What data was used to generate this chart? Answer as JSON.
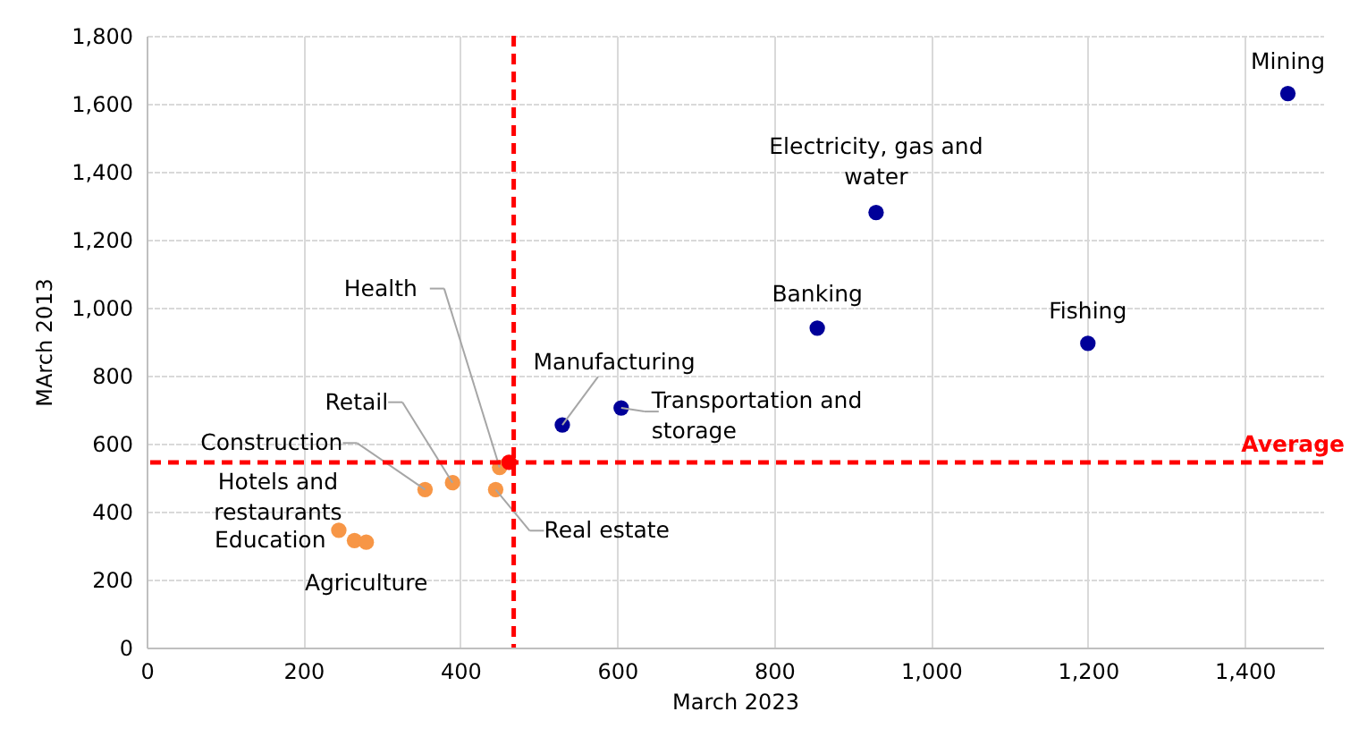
{
  "chart_data": {
    "type": "scatter",
    "xlabel": "March 2023",
    "ylabel": "MArch 2013",
    "xlim": [
      0,
      1500
    ],
    "ylim": [
      0,
      1800
    ],
    "xticks": [
      0,
      200,
      400,
      600,
      800,
      {
        "value": 1000,
        "label": "1,000"
      },
      {
        "value": 1200,
        "label": "1,200"
      },
      {
        "value": 1400,
        "label": "1,400"
      }
    ],
    "yticks": [
      0,
      200,
      400,
      600,
      800,
      {
        "value": 1000,
        "label": "1,000"
      },
      {
        "value": 1200,
        "label": "1,200"
      },
      {
        "value": 1400,
        "label": "1,400"
      },
      {
        "value": 1600,
        "label": "1,600"
      },
      {
        "value": 1800,
        "label": "1,800"
      }
    ],
    "grid": true,
    "legend": false,
    "marker": "circle",
    "series": [
      {
        "color": "#000099",
        "x": [
          1455,
          930,
          855,
          1200,
          530,
          605
        ],
        "values": [
          1630,
          1280,
          940,
          895,
          655,
          705
        ]
      },
      {
        "color": "#f79646",
        "x": [
          355,
          390,
          450,
          445,
          245,
          265,
          280
        ],
        "values": [
          465,
          485,
          530,
          465,
          345,
          315,
          310
        ]
      },
      {
        "color": "#ff0000",
        "x": [
          462
        ],
        "values": [
          545
        ]
      }
    ],
    "ref_lines": [
      {
        "axis": "x",
        "value": 468,
        "color": "#ff0000",
        "line_style": "dashed"
      },
      {
        "axis": "y",
        "value": 545,
        "label": "Average",
        "color": "#ff0000",
        "line_style": "dashed"
      }
    ],
    "annotations": [
      {
        "text": "Mining",
        "x": 1455,
        "y": 1630
      },
      {
        "text": "Electricity, gas and water",
        "x": 930,
        "y": 1280
      },
      {
        "text": "Banking",
        "x": 855,
        "y": 940
      },
      {
        "text": "Fishing",
        "x": 1200,
        "y": 895
      },
      {
        "text": "Manufacturing",
        "x": 530,
        "y": 655
      },
      {
        "text": "Transportation and storage",
        "x": 605,
        "y": 705
      },
      {
        "text": "Health",
        "x": 450,
        "y": 530
      },
      {
        "text": "Retail",
        "x": 390,
        "y": 485
      },
      {
        "text": "Construction",
        "x": 355,
        "y": 465
      },
      {
        "text": "Real estate",
        "x": 445,
        "y": 465
      },
      {
        "text": "Hotels and restaurants",
        "x": 245,
        "y": 345
      },
      {
        "text": "Education",
        "x": 265,
        "y": 315
      },
      {
        "text": "Agriculture",
        "x": 280,
        "y": 310
      }
    ]
  }
}
